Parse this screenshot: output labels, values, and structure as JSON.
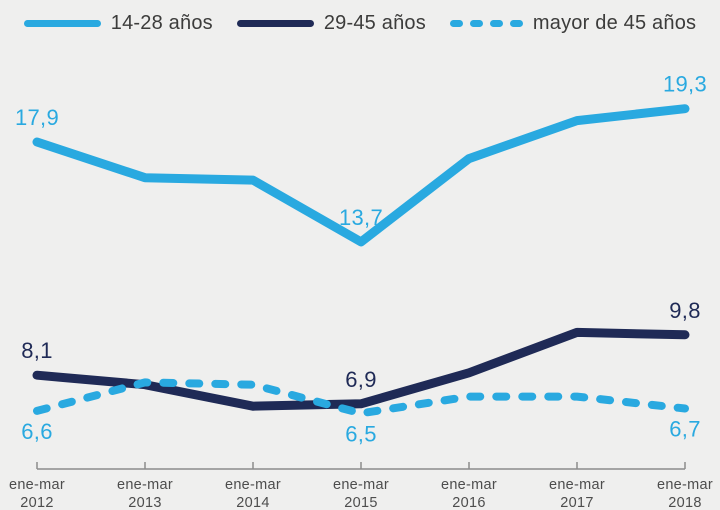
{
  "legend": {
    "items": [
      {
        "label": "14-28 años",
        "color": "#29A9E0",
        "style": "solid"
      },
      {
        "label": "29-45 años",
        "color": "#1F2A56",
        "style": "solid"
      },
      {
        "label": "mayor de 45 años",
        "color": "#29A9E0",
        "style": "dashed"
      }
    ]
  },
  "chart_data": {
    "type": "line",
    "title": "",
    "xlabel": "",
    "ylabel": "",
    "grid": false,
    "legend_position": "top",
    "y_axis_visible": false,
    "categories": [
      "ene-mar 2012",
      "ene-mar 2013",
      "ene-mar 2014",
      "ene-mar 2015",
      "ene-mar 2016",
      "ene-mar 2017",
      "ene-mar 2018"
    ],
    "x_labels": [
      {
        "top": "ene-mar",
        "bottom": "2012"
      },
      {
        "top": "ene-mar",
        "bottom": "2013"
      },
      {
        "top": "ene-mar",
        "bottom": "2014"
      },
      {
        "top": "ene-mar",
        "bottom": "2015"
      },
      {
        "top": "ene-mar",
        "bottom": "2016"
      },
      {
        "top": "ene-mar",
        "bottom": "2017"
      },
      {
        "top": "ene-mar",
        "bottom": "2018"
      }
    ],
    "series": [
      {
        "name": "14-28 años",
        "color": "#29A9E0",
        "style": "solid",
        "values": [
          17.9,
          16.4,
          16.3,
          13.7,
          17.2,
          18.8,
          19.3
        ],
        "labels": [
          {
            "index": 0,
            "text": "17,9",
            "position": "above"
          },
          {
            "index": 3,
            "text": "13,7",
            "position": "above"
          },
          {
            "index": 6,
            "text": "19,3",
            "position": "above"
          }
        ]
      },
      {
        "name": "29-45 años",
        "color": "#1F2A56",
        "style": "solid",
        "values": [
          8.1,
          7.7,
          6.8,
          6.9,
          8.2,
          9.9,
          9.8
        ],
        "labels": [
          {
            "index": 0,
            "text": "8,1",
            "position": "above"
          },
          {
            "index": 3,
            "text": "6,9",
            "position": "above"
          },
          {
            "index": 6,
            "text": "9,8",
            "position": "above"
          }
        ]
      },
      {
        "name": "mayor de 45 años",
        "color": "#29A9E0",
        "style": "dashed",
        "values": [
          6.6,
          7.8,
          7.7,
          6.5,
          7.2,
          7.2,
          6.7
        ],
        "labels": [
          {
            "index": 0,
            "text": "6,6",
            "position": "below"
          },
          {
            "index": 3,
            "text": "6,5",
            "position": "below"
          },
          {
            "index": 6,
            "text": "6,7",
            "position": "below"
          }
        ]
      }
    ]
  },
  "colors": {
    "background": "#EFEFEE",
    "axis": "#8C8C8C",
    "tick_label": "#4D4D4D",
    "legend_text": "#3C3C3B"
  }
}
